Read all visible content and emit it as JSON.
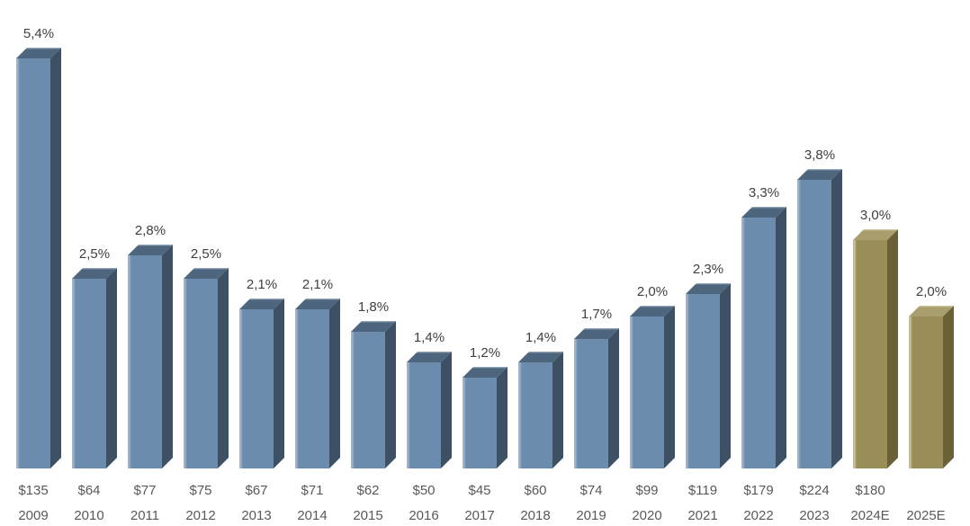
{
  "chart_data": {
    "type": "bar",
    "title": "",
    "xlabel": "",
    "ylabel": "",
    "legend": "none",
    "gridlines": false,
    "axes_visible": false,
    "decimal_separator": "comma",
    "style": "3d-column",
    "categories": [
      "2009",
      "2010",
      "2011",
      "2012",
      "2013",
      "2014",
      "2015",
      "2016",
      "2017",
      "2018",
      "2019",
      "2020",
      "2021",
      "2022",
      "2023",
      "2024E",
      "2025E"
    ],
    "bars": [
      {
        "year": "2009",
        "pct": 5.4,
        "pct_label": "5,4%",
        "dollar_label": "$135",
        "series": "historical"
      },
      {
        "year": "2010",
        "pct": 2.5,
        "pct_label": "2,5%",
        "dollar_label": "$64",
        "series": "historical"
      },
      {
        "year": "2011",
        "pct": 2.8,
        "pct_label": "2,8%",
        "dollar_label": "$77",
        "series": "historical"
      },
      {
        "year": "2012",
        "pct": 2.5,
        "pct_label": "2,5%",
        "dollar_label": "$75",
        "series": "historical"
      },
      {
        "year": "2013",
        "pct": 2.1,
        "pct_label": "2,1%",
        "dollar_label": "$67",
        "series": "historical"
      },
      {
        "year": "2014",
        "pct": 2.1,
        "pct_label": "2,1%",
        "dollar_label": "$71",
        "series": "historical"
      },
      {
        "year": "2015",
        "pct": 1.8,
        "pct_label": "1,8%",
        "dollar_label": "$62",
        "series": "historical"
      },
      {
        "year": "2016",
        "pct": 1.4,
        "pct_label": "1,4%",
        "dollar_label": "$50",
        "series": "historical"
      },
      {
        "year": "2017",
        "pct": 1.2,
        "pct_label": "1,2%",
        "dollar_label": "$45",
        "series": "historical"
      },
      {
        "year": "2018",
        "pct": 1.4,
        "pct_label": "1,4%",
        "dollar_label": "$60",
        "series": "historical"
      },
      {
        "year": "2019",
        "pct": 1.7,
        "pct_label": "1,7%",
        "dollar_label": "$74",
        "series": "historical"
      },
      {
        "year": "2020",
        "pct": 2.0,
        "pct_label": "2,0%",
        "dollar_label": "$99",
        "series": "historical"
      },
      {
        "year": "2021",
        "pct": 2.3,
        "pct_label": "2,3%",
        "dollar_label": "$119",
        "series": "historical"
      },
      {
        "year": "2022",
        "pct": 3.3,
        "pct_label": "3,3%",
        "dollar_label": "$179",
        "series": "historical"
      },
      {
        "year": "2023",
        "pct": 3.8,
        "pct_label": "3,8%",
        "dollar_label": "$224",
        "series": "historical"
      },
      {
        "year": "2024E",
        "pct": 3.0,
        "pct_label": "3,0%",
        "dollar_label": "$180",
        "series": "estimate"
      },
      {
        "year": "2025E",
        "pct": 2.0,
        "pct_label": "2,0%",
        "dollar_label": "",
        "series": "estimate"
      }
    ],
    "colors": {
      "historical": {
        "front": "#6c8cad",
        "top": "#4d657d",
        "side": "#3d5064",
        "edge_highlight": "#a8b9c9"
      },
      "estimate": {
        "front": "#998e58",
        "top": "#a99e6d",
        "side": "#6a6138",
        "edge_highlight": "#d8d0ac"
      },
      "pct_label_text": "#404040",
      "bottom_label_text": "#595959",
      "background": "#ffffff"
    }
  }
}
